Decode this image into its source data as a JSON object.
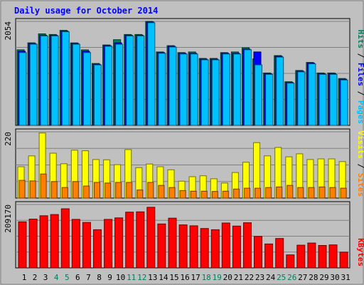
{
  "colors": {
    "background": "#c0c0c0",
    "frame": "#808080",
    "panel": "#c0c0c0",
    "title_text": "#0000ff",
    "hits": "#00805c",
    "files": "#0000ff",
    "pages": "#00c0ff",
    "visits": "#ffff00",
    "sites": "#ff8000",
    "kbytes": "#ff0000",
    "weekend_label": "#00805c",
    "weekday_label": "#000000"
  },
  "chart_data": [
    {
      "type": "bar",
      "title": "Daily usage for October 2014",
      "max_label": "2054",
      "ylim": [
        0,
        2054
      ],
      "legend": [
        "Pages",
        "Files",
        "Hits"
      ],
      "categories": [
        "1",
        "2",
        "3",
        "4",
        "5",
        "6",
        "7",
        "8",
        "9",
        "10",
        "11",
        "12",
        "13",
        "14",
        "15",
        "16",
        "17",
        "18",
        "19",
        "20",
        "21",
        "22",
        "23",
        "24",
        "25",
        "26",
        "27",
        "28",
        "29",
        "30",
        "31"
      ],
      "weekend_days": [
        "4",
        "5",
        "11",
        "12",
        "18",
        "19",
        "25",
        "26"
      ],
      "series": [
        {
          "name": "Hits",
          "values": [
            1492,
            1630,
            1808,
            1795,
            1877,
            1629,
            1491,
            1222,
            1589,
            1692,
            1795,
            1795,
            2054,
            1451,
            1574,
            1438,
            1451,
            1322,
            1322,
            1438,
            1451,
            1534,
            1314,
            1036,
            1379,
            862,
            1084,
            1244,
            1036,
            1036,
            926
          ]
        },
        {
          "name": "Files",
          "values": [
            1465,
            1616,
            1781,
            1781,
            1863,
            1616,
            1465,
            1208,
            1575,
            1630,
            1781,
            1781,
            2040,
            1438,
            1562,
            1424,
            1424,
            1307,
            1307,
            1424,
            1424,
            1505,
            1451,
            1022,
            1364,
            848,
            1070,
            1230,
            1022,
            1022,
            911
          ]
        },
        {
          "name": "Pages",
          "values": [
            1438,
            1602,
            1767,
            1767,
            1849,
            1602,
            1438,
            1194,
            1562,
            1602,
            1767,
            1767,
            2027,
            1424,
            1548,
            1410,
            1410,
            1294,
            1294,
            1410,
            1410,
            1492,
            1194,
            1008,
            1348,
            834,
            1056,
            1216,
            1008,
            1008,
            896
          ]
        }
      ]
    },
    {
      "type": "bar",
      "max_label": "220",
      "ylim": [
        0,
        220
      ],
      "legend": [
        "Sites",
        "Visits"
      ],
      "categories": [
        "1",
        "2",
        "3",
        "4",
        "5",
        "6",
        "7",
        "8",
        "9",
        "10",
        "11",
        "12",
        "13",
        "14",
        "15",
        "16",
        "17",
        "18",
        "19",
        "20",
        "21",
        "22",
        "23",
        "24",
        "25",
        "26",
        "27",
        "28",
        "29",
        "30",
        "31"
      ],
      "series": [
        {
          "name": "Visits",
          "values": [
            104,
            140,
            216,
            149,
            114,
            159,
            157,
            128,
            127,
            111,
            161,
            101,
            113,
            104,
            94,
            56,
            71,
            74,
            64,
            50,
            85,
            119,
            184,
            140,
            168,
            137,
            147,
            128,
            130,
            130,
            121
          ]
        },
        {
          "name": "Sites",
          "values": [
            59,
            57,
            80,
            55,
            35,
            55,
            40,
            52,
            50,
            52,
            52,
            27,
            52,
            42,
            35,
            25,
            23,
            23,
            22,
            23,
            30,
            33,
            33,
            35,
            37,
            42,
            35,
            35,
            37,
            35,
            33
          ]
        }
      ]
    },
    {
      "type": "bar",
      "max_label": "209170",
      "ylim": [
        0,
        209170
      ],
      "legend": [
        "KBytes"
      ],
      "categories": [
        "1",
        "2",
        "3",
        "4",
        "5",
        "6",
        "7",
        "8",
        "9",
        "10",
        "11",
        "12",
        "13",
        "14",
        "15",
        "16",
        "17",
        "18",
        "19",
        "20",
        "21",
        "22",
        "23",
        "24",
        "25",
        "26",
        "27",
        "28",
        "29",
        "30",
        "31"
      ],
      "series": [
        {
          "name": "KBytes",
          "values": [
            152000,
            161000,
            172000,
            176000,
            195000,
            160000,
            150000,
            126000,
            160000,
            165000,
            184000,
            185000,
            200000,
            145000,
            164000,
            142000,
            139000,
            130000,
            126000,
            148000,
            138000,
            149000,
            104000,
            79000,
            97000,
            43000,
            75000,
            82000,
            74000,
            76000,
            52000
          ]
        }
      ]
    }
  ]
}
